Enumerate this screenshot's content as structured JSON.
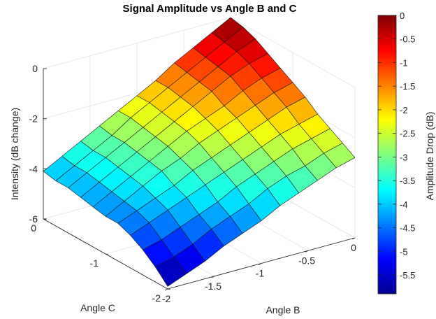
{
  "chart_data": {
    "type": "surface",
    "title": "Signal Amplitude vs Angle B and C",
    "xlabel": "Angle B",
    "ylabel": "Angle C",
    "zlabel": "Intensity (dB change)",
    "xlim": [
      -2,
      0
    ],
    "ylim": [
      -2,
      0
    ],
    "zlim": [
      -6,
      0
    ],
    "xticks": [
      "-2",
      "-1.5",
      "-1",
      "-0.5",
      "0"
    ],
    "yticks": [
      "-2",
      "-1",
      "0"
    ],
    "zticks": [
      "-6",
      "-4",
      "-2",
      "0"
    ],
    "grid": true,
    "colormap": "jet",
    "colorbar": {
      "label": "Amplitude Drop (dB)",
      "range": [
        -5.9,
        0
      ],
      "ticks": [
        "0",
        "-0.5",
        "-1",
        "-1.5",
        "-2",
        "-2.5",
        "-3",
        "-3.5",
        "-4",
        "-4.5",
        "-5",
        "-5.5"
      ]
    },
    "x": [
      -2.0,
      -1.8,
      -1.6,
      -1.4,
      -1.2,
      -1.0,
      -0.8,
      -0.6,
      -0.4,
      -0.2,
      0.0
    ],
    "y": [
      -2.0,
      -1.8,
      -1.6,
      -1.4,
      -1.2,
      -1.0,
      -0.8,
      -0.6,
      -0.4,
      -0.2,
      0.0
    ],
    "z": [
      [
        -5.9,
        -5.6,
        -5.3,
        -4.9,
        -4.6,
        -4.3,
        -3.9,
        -3.6,
        -3.3,
        -3.0,
        -2.8
      ],
      [
        -5.4,
        -5.2,
        -4.9,
        -4.5,
        -4.2,
        -3.9,
        -3.5,
        -3.2,
        -3.0,
        -2.7,
        -2.5
      ],
      [
        -5.0,
        -4.8,
        -4.5,
        -4.2,
        -3.9,
        -3.5,
        -3.2,
        -2.9,
        -2.6,
        -2.4,
        -2.2
      ],
      [
        -4.7,
        -4.4,
        -4.1,
        -3.8,
        -3.5,
        -3.2,
        -2.9,
        -2.6,
        -2.3,
        -2.1,
        -1.9
      ],
      [
        -4.5,
        -4.2,
        -3.9,
        -3.6,
        -3.2,
        -2.9,
        -2.6,
        -2.3,
        -2.0,
        -1.7,
        -1.5
      ],
      [
        -4.5,
        -4.1,
        -3.7,
        -3.3,
        -3.0,
        -2.6,
        -2.3,
        -2.0,
        -1.7,
        -1.4,
        -1.2
      ],
      [
        -4.4,
        -4.0,
        -3.6,
        -3.2,
        -2.8,
        -2.4,
        -2.1,
        -1.8,
        -1.4,
        -1.1,
        -0.9
      ],
      [
        -4.3,
        -3.9,
        -3.5,
        -3.1,
        -2.7,
        -2.3,
        -1.9,
        -1.5,
        -1.1,
        -0.8,
        -0.6
      ],
      [
        -4.2,
        -3.8,
        -3.4,
        -3.0,
        -2.6,
        -2.2,
        -1.8,
        -1.4,
        -1.0,
        -0.6,
        -0.3
      ],
      [
        -4.2,
        -3.8,
        -3.4,
        -3.0,
        -2.5,
        -2.1,
        -1.7,
        -1.3,
        -0.9,
        -0.5,
        -0.1
      ],
      [
        -4.1,
        -3.7,
        -3.3,
        -2.9,
        -2.5,
        -2.1,
        -1.7,
        -1.2,
        -0.8,
        -0.4,
        0.0
      ]
    ]
  }
}
